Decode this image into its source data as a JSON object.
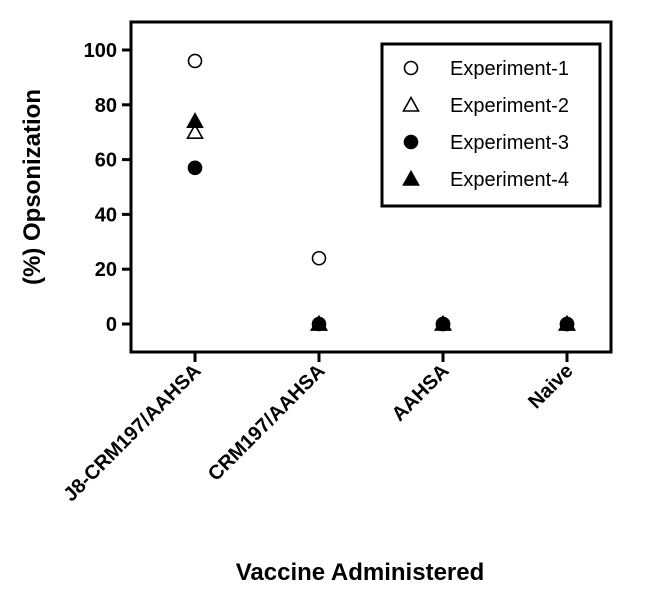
{
  "chart_data": {
    "type": "scatter",
    "title": "",
    "xlabel": "Vaccine Administered",
    "ylabel": "(%) Opsonization",
    "categories": [
      "J8-CRM197/AAHSA",
      "CRM197/AAHSA",
      "AAHSA",
      "Naive"
    ],
    "ylim": [
      -10,
      110
    ],
    "yticks": [
      0,
      20,
      40,
      60,
      80,
      100
    ],
    "grid": false,
    "legend_position": "top-right",
    "series": [
      {
        "name": "Experiment-1",
        "marker": "open-circle",
        "values": [
          96,
          24,
          0,
          0
        ]
      },
      {
        "name": "Experiment-2",
        "marker": "open-triangle",
        "values": [
          70,
          0,
          0,
          0
        ]
      },
      {
        "name": "Experiment-3",
        "marker": "filled-circle",
        "values": [
          57,
          0,
          0,
          0
        ]
      },
      {
        "name": "Experiment-4",
        "marker": "filled-triangle",
        "values": [
          74,
          0,
          0,
          0
        ]
      }
    ]
  }
}
